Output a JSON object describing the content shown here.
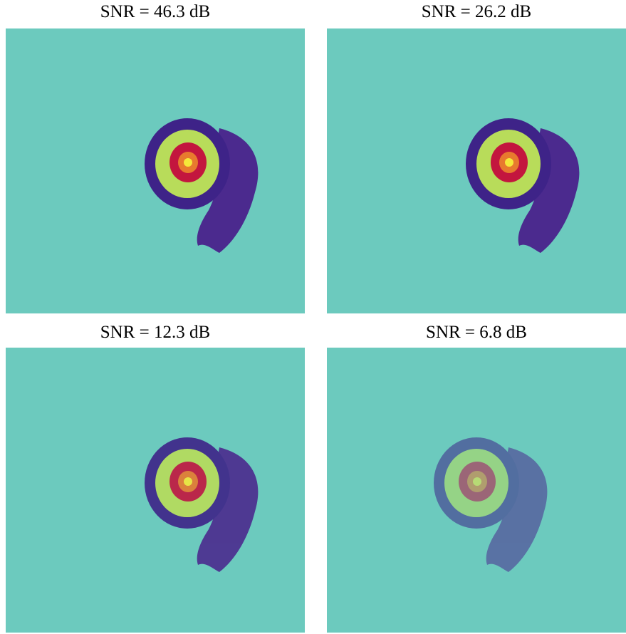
{
  "panels": [
    {
      "title": "SNR = 46.3 dB"
    },
    {
      "title": "SNR = 26.2 dB"
    },
    {
      "title": "SNR = 12.3 dB"
    },
    {
      "title": "SNR = 6.8 dB"
    }
  ]
}
